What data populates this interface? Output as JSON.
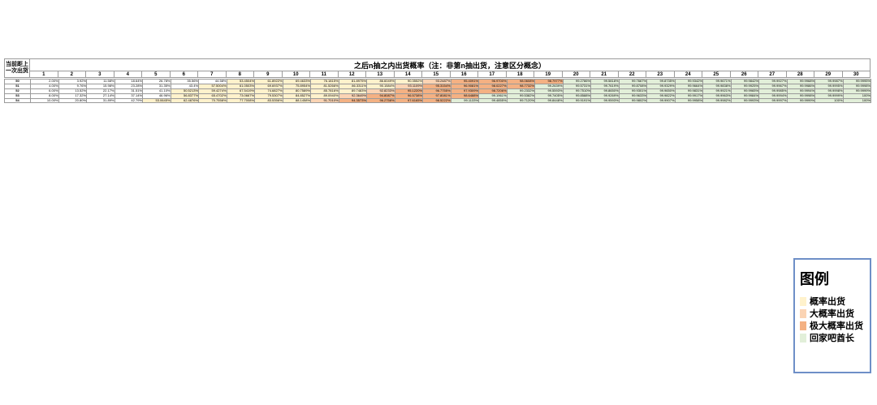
{
  "header": {
    "corner_label": "当前距上一次出货",
    "title": "之后n抽之内出货概率（注：非第n抽出货，注意区分概念）",
    "columns": [
      "1",
      "2",
      "3",
      "4",
      "5",
      "6",
      "7",
      "8",
      "9",
      "10",
      "11",
      "12",
      "13",
      "14",
      "15",
      "16",
      "17",
      "18",
      "19",
      "20",
      "21",
      "22",
      "23",
      "24",
      "25",
      "26",
      "27",
      "28",
      "29",
      "30"
    ]
  },
  "legend": {
    "title": "图例",
    "items": [
      {
        "label": "概率出货",
        "color": "#fff2cc"
      },
      {
        "label": "大概率出货",
        "color": "#fbd4b4"
      },
      {
        "label": "极大概率出货",
        "color": "#f4b183"
      },
      {
        "label": "回家吧酋长",
        "color": "#e2efd9"
      }
    ]
  },
  "table": {
    "rows": [
      {
        "label": "50",
        "cells": [
          [
            "2.00%",
            "v"
          ],
          [
            "3.92%",
            "v"
          ],
          [
            "11.58%",
            "v"
          ],
          [
            "18.64%",
            "v"
          ],
          [
            "26.78%",
            "v"
          ],
          [
            "35.56%",
            "v"
          ],
          [
            "44.58%",
            "v"
          ],
          [
            "53.4504%",
            "y"
          ],
          [
            "61.8922%",
            "y"
          ],
          [
            "69.4633%",
            "y"
          ],
          [
            "76.1815%",
            "y"
          ],
          [
            "81.8975%",
            "y"
          ],
          [
            "86.6049%",
            "y"
          ],
          [
            "90.3552%",
            "y"
          ],
          [
            "93.2487%",
            "o"
          ],
          [
            "95.4091%",
            "r"
          ],
          [
            "96.9700%",
            "r"
          ],
          [
            "98.0608%",
            "r"
          ],
          [
            "98.7977%",
            "r"
          ],
          [
            "99.2786%",
            "g"
          ],
          [
            "99.5818%",
            "g"
          ],
          [
            "99.7667%",
            "g"
          ],
          [
            "99.8735%",
            "g"
          ],
          [
            "99.9342%",
            "g"
          ],
          [
            "99.9671%",
            "g"
          ],
          [
            "99.9842%",
            "g"
          ],
          [
            "99.9927%",
            "g"
          ],
          [
            "99.9968%",
            "g"
          ],
          [
            "99.9987%",
            "g"
          ],
          [
            "99.9995%",
            "g"
          ]
        ]
      },
      {
        "label": "51",
        "cells": [
          [
            "4.00%",
            "v"
          ],
          [
            "9.76%",
            "v"
          ],
          [
            "15.98%",
            "v"
          ],
          [
            "23.28%",
            "v"
          ],
          [
            "31.35%",
            "v"
          ],
          [
            "43.4%",
            "v"
          ],
          [
            "57.5004%",
            "y"
          ],
          [
            "61.0503%",
            "y"
          ],
          [
            "69.6937%",
            "y"
          ],
          [
            "75.8954%",
            "y"
          ],
          [
            "81.5266%",
            "y"
          ],
          [
            "86.3311%",
            "y"
          ],
          [
            "90.1584%",
            "y"
          ],
          [
            "93.1109%",
            "o"
          ],
          [
            "95.3154%",
            "r"
          ],
          [
            "96.9081%",
            "r"
          ],
          [
            "98.0227%",
            "r"
          ],
          [
            "98.7732%",
            "r"
          ],
          [
            "99.2639%",
            "g"
          ],
          [
            "99.5731%",
            "g"
          ],
          [
            "99.7619%",
            "g"
          ],
          [
            "99.8708%",
            "g"
          ],
          [
            "99.9329%",
            "g"
          ],
          [
            "99.9664%",
            "g"
          ],
          [
            "99.9838%",
            "g"
          ],
          [
            "99.9925%",
            "g"
          ],
          [
            "99.9967%",
            "g"
          ],
          [
            "99.9986%",
            "g"
          ],
          [
            "99.9995%",
            "g"
          ],
          [
            "99.9998%",
            "g"
          ]
        ]
      },
      {
        "label": "52",
        "cells": [
          [
            "6.00%",
            "v"
          ],
          [
            "13.52%",
            "v"
          ],
          [
            "22.17%",
            "v"
          ],
          [
            "31.51%",
            "v"
          ],
          [
            "41.10%",
            "v"
          ],
          [
            "50.5213%",
            "y"
          ],
          [
            "59.4274%",
            "y"
          ],
          [
            "67.5419%",
            "y"
          ],
          [
            "74.6827%",
            "y"
          ],
          [
            "80.7589%",
            "y"
          ],
          [
            "85.7816%",
            "y"
          ],
          [
            "89.7483%",
            "y"
          ],
          [
            "92.8233%",
            "o"
          ],
          [
            "95.1220%",
            "r"
          ],
          [
            "96.7755%",
            "r"
          ],
          [
            "97.9309%",
            "r"
          ],
          [
            "98.7206%",
            "r"
          ],
          [
            "99.2332%",
            "g"
          ],
          [
            "99.5593%",
            "g"
          ],
          [
            "99.7510%",
            "g"
          ],
          [
            "99.8650%",
            "g"
          ],
          [
            "99.9301%",
            "g"
          ],
          [
            "99.9650%",
            "g"
          ],
          [
            "99.9831%",
            "g"
          ],
          [
            "99.9921%",
            "g"
          ],
          [
            "99.9965%",
            "g"
          ],
          [
            "99.9985%",
            "g"
          ],
          [
            "99.9994%",
            "g"
          ],
          [
            "99.9998%",
            "g"
          ],
          [
            "99.9999%",
            "g"
          ]
        ]
      },
      {
        "label": "53",
        "cells": [
          [
            "8.00%",
            "v"
          ],
          [
            "17.32%",
            "v"
          ],
          [
            "27.14%",
            "v"
          ],
          [
            "37.14%",
            "v"
          ],
          [
            "46.96%",
            "v"
          ],
          [
            "56.8377%",
            "y"
          ],
          [
            "65.4702%",
            "y"
          ],
          [
            "73.0667%",
            "y"
          ],
          [
            "79.5307%",
            "y"
          ],
          [
            "84.8527%",
            "y"
          ],
          [
            "89.0940%",
            "y"
          ],
          [
            "92.3649%",
            "o"
          ],
          [
            "94.8087%",
            "r"
          ],
          [
            "96.5738%",
            "r"
          ],
          [
            "97.8081%",
            "r"
          ],
          [
            "98.6488%",
            "r"
          ],
          [
            "99.1961%",
            "g"
          ],
          [
            "99.5382%",
            "g"
          ],
          [
            "99.7405%",
            "g"
          ],
          [
            "99.8588%",
            "g"
          ],
          [
            "99.9269%",
            "g"
          ],
          [
            "99.9633%",
            "g"
          ],
          [
            "99.9822%",
            "g"
          ],
          [
            "99.9917%",
            "g"
          ],
          [
            "99.9963%",
            "g"
          ],
          [
            "99.9984%",
            "g"
          ],
          [
            "99.9994%",
            "g"
          ],
          [
            "99.9998%",
            "g"
          ],
          [
            "99.9999%",
            "g"
          ],
          [
            "100%",
            "g"
          ]
        ]
      },
      {
        "label": "54",
        "cells": [
          [
            "10.00%",
            "v"
          ],
          [
            "20.80%",
            "v"
          ],
          [
            "31.89%",
            "v"
          ],
          [
            "42.79%",
            "v"
          ],
          [
            "53.0645%",
            "y"
          ],
          [
            "62.4876%",
            "y"
          ],
          [
            "70.7558%",
            "y"
          ],
          [
            "77.7008%",
            "y"
          ],
          [
            "83.5356%",
            "y"
          ],
          [
            "88.1458%",
            "y"
          ],
          [
            "91.7010%",
            "o"
          ],
          [
            "94.3573%",
            "r"
          ],
          [
            "96.2758%",
            "r"
          ],
          [
            "97.6165%",
            "r"
          ],
          [
            "98.5222%",
            "r"
          ],
          [
            "99.1133%",
            "g"
          ],
          [
            "99.4855%",
            "g"
          ],
          [
            "99.7120%",
            "g"
          ],
          [
            "99.8448%",
            "g"
          ],
          [
            "99.9191%",
            "g"
          ],
          [
            "99.9593%",
            "g"
          ],
          [
            "99.9802%",
            "g"
          ],
          [
            "99.9907%",
            "g"
          ],
          [
            "99.9958%",
            "g"
          ],
          [
            "99.9982%",
            "g"
          ],
          [
            "99.9993%",
            "g"
          ],
          [
            "99.9997%",
            "g"
          ],
          [
            "99.9999%",
            "g"
          ],
          [
            "100%",
            "g"
          ],
          [
            "100%",
            "g"
          ]
        ]
      }
    ]
  }
}
